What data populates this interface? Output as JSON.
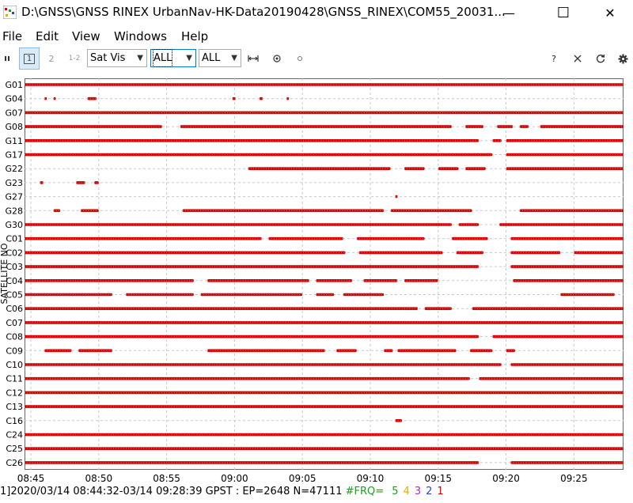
{
  "window": {
    "title": "D:\\GNSS\\GNSS RINEX UrbanNav-HK-Data20190428\\GNSS_RINEX\\COM55_20031...",
    "minimize_glyph": "—",
    "maximize_glyph": "☐",
    "close_glyph": "✕"
  },
  "menu": [
    "File",
    "Edit",
    "View",
    "Windows",
    "Help"
  ],
  "toolbar": {
    "btn1": "1",
    "btn2": "2",
    "btn12": "1-2",
    "plot_type": "Sat Vis",
    "sat_filter": "ALL",
    "obs_filter": "ALL",
    "help": "?",
    "icons": [
      "pause-icon",
      "fit-horizontal-icon",
      "center-target-icon",
      "small-dot-icon",
      "close-x-icon",
      "refresh-icon",
      "settings-gear-icon"
    ]
  },
  "chart_data": {
    "type": "scatter",
    "ylabel": "SATELLITE NO",
    "xlabel": "",
    "satellites": [
      "G01",
      "G04",
      "G07",
      "G08",
      "G11",
      "G17",
      "G22",
      "G23",
      "G27",
      "G28",
      "G30",
      "C01",
      "C02",
      "C03",
      "C04",
      "C05",
      "C06",
      "C07",
      "C08",
      "C09",
      "C10",
      "C11",
      "C12",
      "C13",
      "C16",
      "C24",
      "C25",
      "C26"
    ],
    "x_ticks": [
      "08:45",
      "08:50",
      "08:55",
      "09:00",
      "09:05",
      "09:10",
      "09:15",
      "09:20",
      "09:25"
    ],
    "xlim": [
      "08:44:32",
      "09:28:39"
    ],
    "marker_color": "#d40000",
    "grid": true,
    "visibility_segments": {
      "G01": [
        [
          "08:44:32",
          "09:28:39"
        ]
      ],
      "G04": [
        [
          "08:46:00",
          "08:46:10"
        ],
        [
          "08:46:40",
          "08:46:50"
        ],
        [
          "08:49:10",
          "08:49:50"
        ],
        [
          "08:59:50",
          "09:00:05"
        ],
        [
          "09:01:50",
          "09:02:05"
        ],
        [
          "09:03:50",
          "09:04:00"
        ]
      ],
      "G07": [
        [
          "08:44:32",
          "09:28:39"
        ]
      ],
      "G08": [
        [
          "08:44:32",
          "08:54:40"
        ],
        [
          "08:56:00",
          "09:16:00"
        ],
        [
          "09:17:00",
          "09:18:20"
        ],
        [
          "09:19:20",
          "09:20:30"
        ],
        [
          "09:21:00",
          "09:21:40"
        ],
        [
          "09:22:30",
          "09:28:39"
        ]
      ],
      "G11": [
        [
          "08:44:32",
          "09:18:00"
        ],
        [
          "09:19:00",
          "09:19:40"
        ],
        [
          "09:20:00",
          "09:28:39"
        ]
      ],
      "G17": [
        [
          "08:44:32",
          "09:19:00"
        ],
        [
          "09:20:00",
          "09:28:39"
        ]
      ],
      "G22": [
        [
          "09:01:00",
          "09:11:30"
        ],
        [
          "09:12:30",
          "09:14:00"
        ],
        [
          "09:15:00",
          "09:16:30"
        ],
        [
          "09:17:00",
          "09:18:30"
        ],
        [
          "09:20:00",
          "09:28:39"
        ]
      ],
      "G23": [
        [
          "08:45:40",
          "08:45:55"
        ],
        [
          "08:48:20",
          "08:49:00"
        ],
        [
          "08:49:40",
          "08:50:00"
        ]
      ],
      "G27": [
        [
          "09:11:50",
          "09:12:00"
        ]
      ],
      "G28": [
        [
          "08:46:40",
          "08:47:10"
        ],
        [
          "08:48:40",
          "08:50:00"
        ],
        [
          "08:56:10",
          "09:11:00"
        ],
        [
          "09:11:30",
          "09:17:30"
        ],
        [
          "09:21:00",
          "09:28:39"
        ]
      ],
      "G30": [
        [
          "08:44:32",
          "09:16:00"
        ],
        [
          "09:16:30",
          "09:18:00"
        ],
        [
          "09:19:30",
          "09:28:39"
        ]
      ],
      "C01": [
        [
          "08:44:32",
          "09:02:00"
        ],
        [
          "09:02:30",
          "09:08:00"
        ],
        [
          "09:09:00",
          "09:14:00"
        ],
        [
          "09:16:00",
          "09:18:40"
        ],
        [
          "09:20:20",
          "09:28:39"
        ]
      ],
      "C02": [
        [
          "08:44:32",
          "09:08:10"
        ],
        [
          "09:09:10",
          "09:15:20"
        ],
        [
          "09:16:20",
          "09:18:20"
        ],
        [
          "09:20:20",
          "09:24:00"
        ],
        [
          "09:25:00",
          "09:28:39"
        ]
      ],
      "C03": [
        [
          "08:44:32",
          "09:18:00"
        ],
        [
          "09:20:20",
          "09:28:39"
        ]
      ],
      "C04": [
        [
          "08:44:32",
          "08:57:00"
        ],
        [
          "08:58:00",
          "09:05:30"
        ],
        [
          "09:06:00",
          "09:08:40"
        ],
        [
          "09:09:30",
          "09:12:00"
        ],
        [
          "09:12:30",
          "09:15:00"
        ],
        [
          "09:20:30",
          "09:28:39"
        ]
      ],
      "C05": [
        [
          "08:44:32",
          "08:51:00"
        ],
        [
          "08:52:00",
          "08:57:00"
        ],
        [
          "08:57:30",
          "09:05:00"
        ],
        [
          "09:06:00",
          "09:07:20"
        ],
        [
          "09:08:00",
          "09:11:00"
        ],
        [
          "09:24:00",
          "09:28:00"
        ]
      ],
      "C06": [
        [
          "08:44:32",
          "09:13:30"
        ],
        [
          "09:14:00",
          "09:16:00"
        ],
        [
          "09:17:30",
          "09:28:39"
        ]
      ],
      "C07": [
        [
          "08:44:32",
          "09:28:39"
        ]
      ],
      "C08": [
        [
          "08:44:32",
          "09:18:00"
        ],
        [
          "09:19:00",
          "09:28:39"
        ]
      ],
      "C09": [
        [
          "08:46:00",
          "08:48:00"
        ],
        [
          "08:48:30",
          "08:51:00"
        ],
        [
          "08:58:00",
          "09:06:40"
        ],
        [
          "09:07:30",
          "09:09:00"
        ],
        [
          "09:11:00",
          "09:11:40"
        ],
        [
          "09:12:00",
          "09:16:20"
        ],
        [
          "09:17:20",
          "09:19:00"
        ],
        [
          "09:20:00",
          "09:20:40"
        ]
      ],
      "C10": [
        [
          "08:44:32",
          "09:19:40"
        ],
        [
          "09:20:20",
          "09:28:39"
        ]
      ],
      "C11": [
        [
          "08:44:32",
          "09:17:20"
        ],
        [
          "09:18:00",
          "09:28:39"
        ]
      ],
      "C12": [
        [
          "08:44:32",
          "09:28:39"
        ]
      ],
      "C13": [
        [
          "08:44:32",
          "09:28:39"
        ]
      ],
      "C16": [
        [
          "09:11:50",
          "09:12:20"
        ]
      ],
      "C24": [
        [
          "08:44:32",
          "09:28:39"
        ]
      ],
      "C25": [
        [
          "08:44:32",
          "09:28:39"
        ]
      ],
      "C26": [
        [
          "08:44:32",
          "09:18:00"
        ],
        [
          "09:20:20",
          "09:28:39"
        ]
      ]
    }
  },
  "status": {
    "prefix": "1]",
    "range": "2020/03/14 08:44:32-03/14 09:28:39 GPST : EP=2648 N=47111",
    "frq_label": "#FRQ=",
    "frq": [
      {
        "text": "5",
        "color": "#1a9e1a"
      },
      {
        "text": "4",
        "color": "#e0b000"
      },
      {
        "text": "3",
        "color": "#b030c0"
      },
      {
        "text": "2",
        "color": "#3040d0"
      },
      {
        "text": "1",
        "color": "#d40000"
      }
    ],
    "frq_label_color": "#1a9e1a"
  }
}
